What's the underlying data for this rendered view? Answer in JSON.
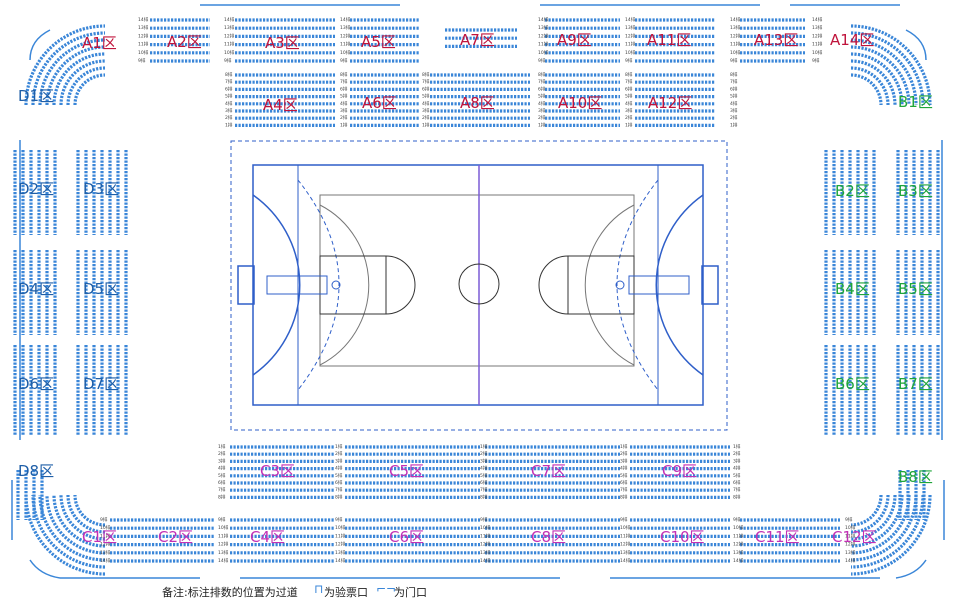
{
  "colors": {
    "north": "#c0143c",
    "east": "#1fa53a",
    "south": "#c330b5",
    "west": "#1f5fa8",
    "seat": "#3a86d8",
    "court_line": "#2f5fc9",
    "court_gray": "#777777",
    "center_line": "#7b5cd6"
  },
  "row_labels": {
    "a_upper": [
      "14排",
      "13排",
      "12排",
      "11排",
      "10排",
      "9排"
    ],
    "a_lower": [
      "8排",
      "7排",
      "6排",
      "5排",
      "4排",
      "3排",
      "2排",
      "1排"
    ],
    "c_upper": [
      "1排",
      "2排",
      "3排",
      "4排",
      "5排",
      "6排",
      "7排",
      "8排"
    ],
    "c_lower": [
      "9排",
      "10排",
      "11排",
      "12排",
      "13排",
      "14排"
    ]
  },
  "sections": {
    "A1": "A1区",
    "A2": "A2区",
    "A3": "A3区",
    "A5": "A5区",
    "A7": "A7区",
    "A9": "A9区",
    "A11": "A11区",
    "A13": "A13区",
    "A14": "A14区",
    "A4": "A4区",
    "A6": "A6区",
    "A8": "A8区",
    "A10": "A10区",
    "A12": "A12区",
    "B1": "B1区",
    "B2": "B2区",
    "B3": "B3区",
    "B4": "B4区",
    "B5": "B5区",
    "B6": "B6区",
    "B7": "B7区",
    "B8": "B8区",
    "C1": "C1区",
    "C2": "C2区",
    "C3": "C3区",
    "C4": "C4区",
    "C5": "C5区",
    "C6": "C6区",
    "C7": "C7区",
    "C8": "C8区",
    "C9": "C9区",
    "C10": "C10区",
    "C11": "C11区",
    "C12": "C12区",
    "D1": "D1区",
    "D2": "D2区",
    "D3": "D3区",
    "D4": "D4区",
    "D5": "D5区",
    "D6": "D6区",
    "D7": "D7区",
    "D8": "D8区"
  },
  "legend": {
    "note": "备注:标注排数的位置为过道",
    "ticket": "为验票口",
    "door": "为门口"
  }
}
